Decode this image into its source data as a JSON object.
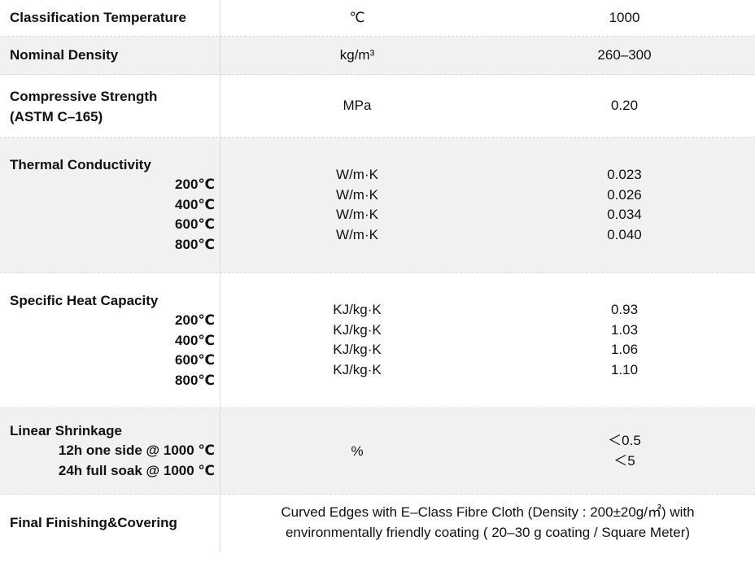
{
  "rows": [
    {
      "label": "Classification Temperature",
      "unit": "℃",
      "value": "1000"
    },
    {
      "label": "Nominal Density",
      "unit": "kg/m³",
      "value": "260–300"
    },
    {
      "label_lines": [
        "Compressive Strength",
        "(ASTM C–165)"
      ],
      "unit": "MPa",
      "value": "0.20"
    },
    {
      "label": "Thermal Conductivity",
      "temps": [
        "200℃",
        "400℃",
        "600℃",
        "800℃"
      ],
      "units": [
        "W/m·K",
        "W/m·K",
        "W/m·K",
        "W/m·K"
      ],
      "values": [
        "0.023",
        "0.026",
        "0.034",
        "0.040"
      ]
    },
    {
      "label": "Specific Heat Capacity",
      "temps": [
        "200℃",
        "400℃",
        "600℃",
        "800℃"
      ],
      "units": [
        "KJ/kg·K",
        "KJ/kg·K",
        "KJ/kg·K",
        "KJ/kg·K"
      ],
      "values": [
        "0.93",
        "1.03",
        "1.06",
        "1.10"
      ]
    },
    {
      "label": "Linear Shrinkage",
      "conditions": [
        "12h one side @ 1000 ℃",
        "24h full soak @ 1000 ℃"
      ],
      "unit": "%",
      "values": [
        "＜0.5",
        "＜5"
      ]
    },
    {
      "label": "Final Finishing&Covering",
      "description_lines": [
        "Curved Edges with E–Class Fibre Cloth (Density : 200±20g/㎡)   with",
        "environmentally friendly coating ( 20–30 g coating / Square Meter)"
      ]
    }
  ]
}
